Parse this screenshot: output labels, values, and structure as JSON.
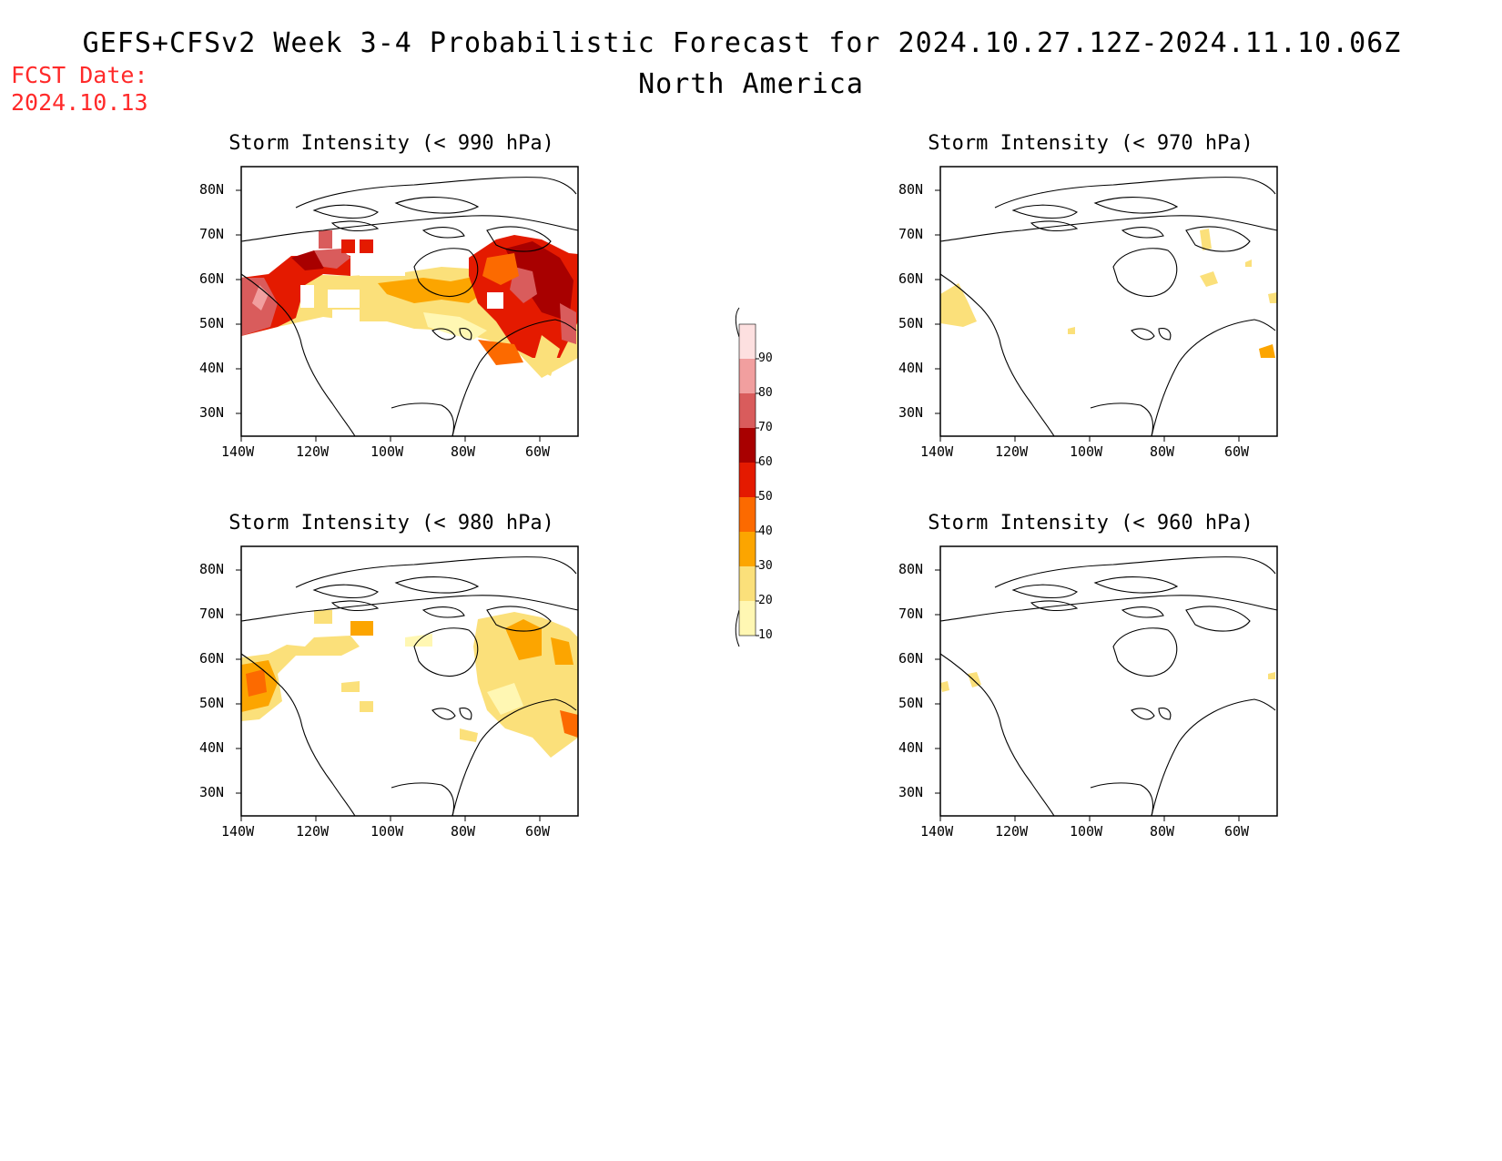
{
  "title_line1": "GEFS+CFSv2 Week 3-4 Probabilistic Forecast for 2024.10.27.12Z-2024.11.10.06Z",
  "title_line2": "North America",
  "fcst_label": "FCST Date:",
  "fcst_date": "2024.10.13",
  "lat_labels": [
    "80N",
    "70N",
    "60N",
    "50N",
    "40N",
    "30N"
  ],
  "lon_labels": [
    "140W",
    "120W",
    "100W",
    "80W",
    "60W"
  ],
  "colorbar": {
    "levels": [
      "10",
      "20",
      "30",
      "40",
      "50",
      "60",
      "70",
      "80",
      "90"
    ],
    "colors": [
      "#fff7b3",
      "#fbe07a",
      "#fca500",
      "#fc6a00",
      "#e41a00",
      "#a80000",
      "#d95c5c",
      "#f19f9f",
      "#fde0e0"
    ]
  },
  "panels": [
    {
      "id": "p990",
      "title": "Storm Intensity (< 990 hPa)"
    },
    {
      "id": "p970",
      "title": "Storm Intensity (< 970 hPa)"
    },
    {
      "id": "p980",
      "title": "Storm Intensity (< 980 hPa)"
    },
    {
      "id": "p960",
      "title": "Storm Intensity (< 960 hPa)"
    }
  ]
}
